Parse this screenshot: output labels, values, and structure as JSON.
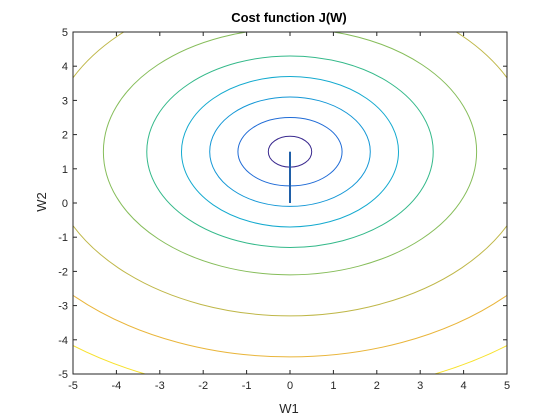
{
  "chart_data": {
    "type": "contour",
    "title": "Cost function J(W)",
    "xlabel": "W1",
    "ylabel": "W2",
    "xlim": [
      -5,
      5
    ],
    "ylim": [
      -5,
      5
    ],
    "xticks": [
      -5,
      -4,
      -3,
      -2,
      -1,
      0,
      1,
      2,
      3,
      4,
      5
    ],
    "yticks": [
      -5,
      -4,
      -3,
      -2,
      -1,
      0,
      1,
      2,
      3,
      4,
      5
    ],
    "grid": false,
    "legend": "none",
    "colormap": "parula",
    "contour_center": [
      0,
      1.5
    ],
    "contours": [
      {
        "rx": 0.5,
        "ry": 0.45,
        "color": "#3b2a8f"
      },
      {
        "rx": 1.2,
        "ry": 1.0,
        "color": "#1f6bd6"
      },
      {
        "rx": 1.85,
        "ry": 1.6,
        "color": "#1497d6"
      },
      {
        "rx": 2.5,
        "ry": 2.2,
        "color": "#14aacf"
      },
      {
        "rx": 3.3,
        "ry": 2.8,
        "color": "#34b98a"
      },
      {
        "rx": 4.3,
        "ry": 3.6,
        "color": "#86bd5a"
      },
      {
        "rx": 5.6,
        "ry": 4.8,
        "color": "#bfb748"
      },
      {
        "rx": 7.0,
        "ry": 6.0,
        "color": "#e9b53a"
      },
      {
        "rx": 8.3,
        "ry": 7.1,
        "color": "#f7e12c"
      }
    ],
    "descent_path": {
      "x": [
        0,
        0
      ],
      "y": [
        0,
        1.5
      ],
      "color": "#1f5fa8"
    }
  }
}
